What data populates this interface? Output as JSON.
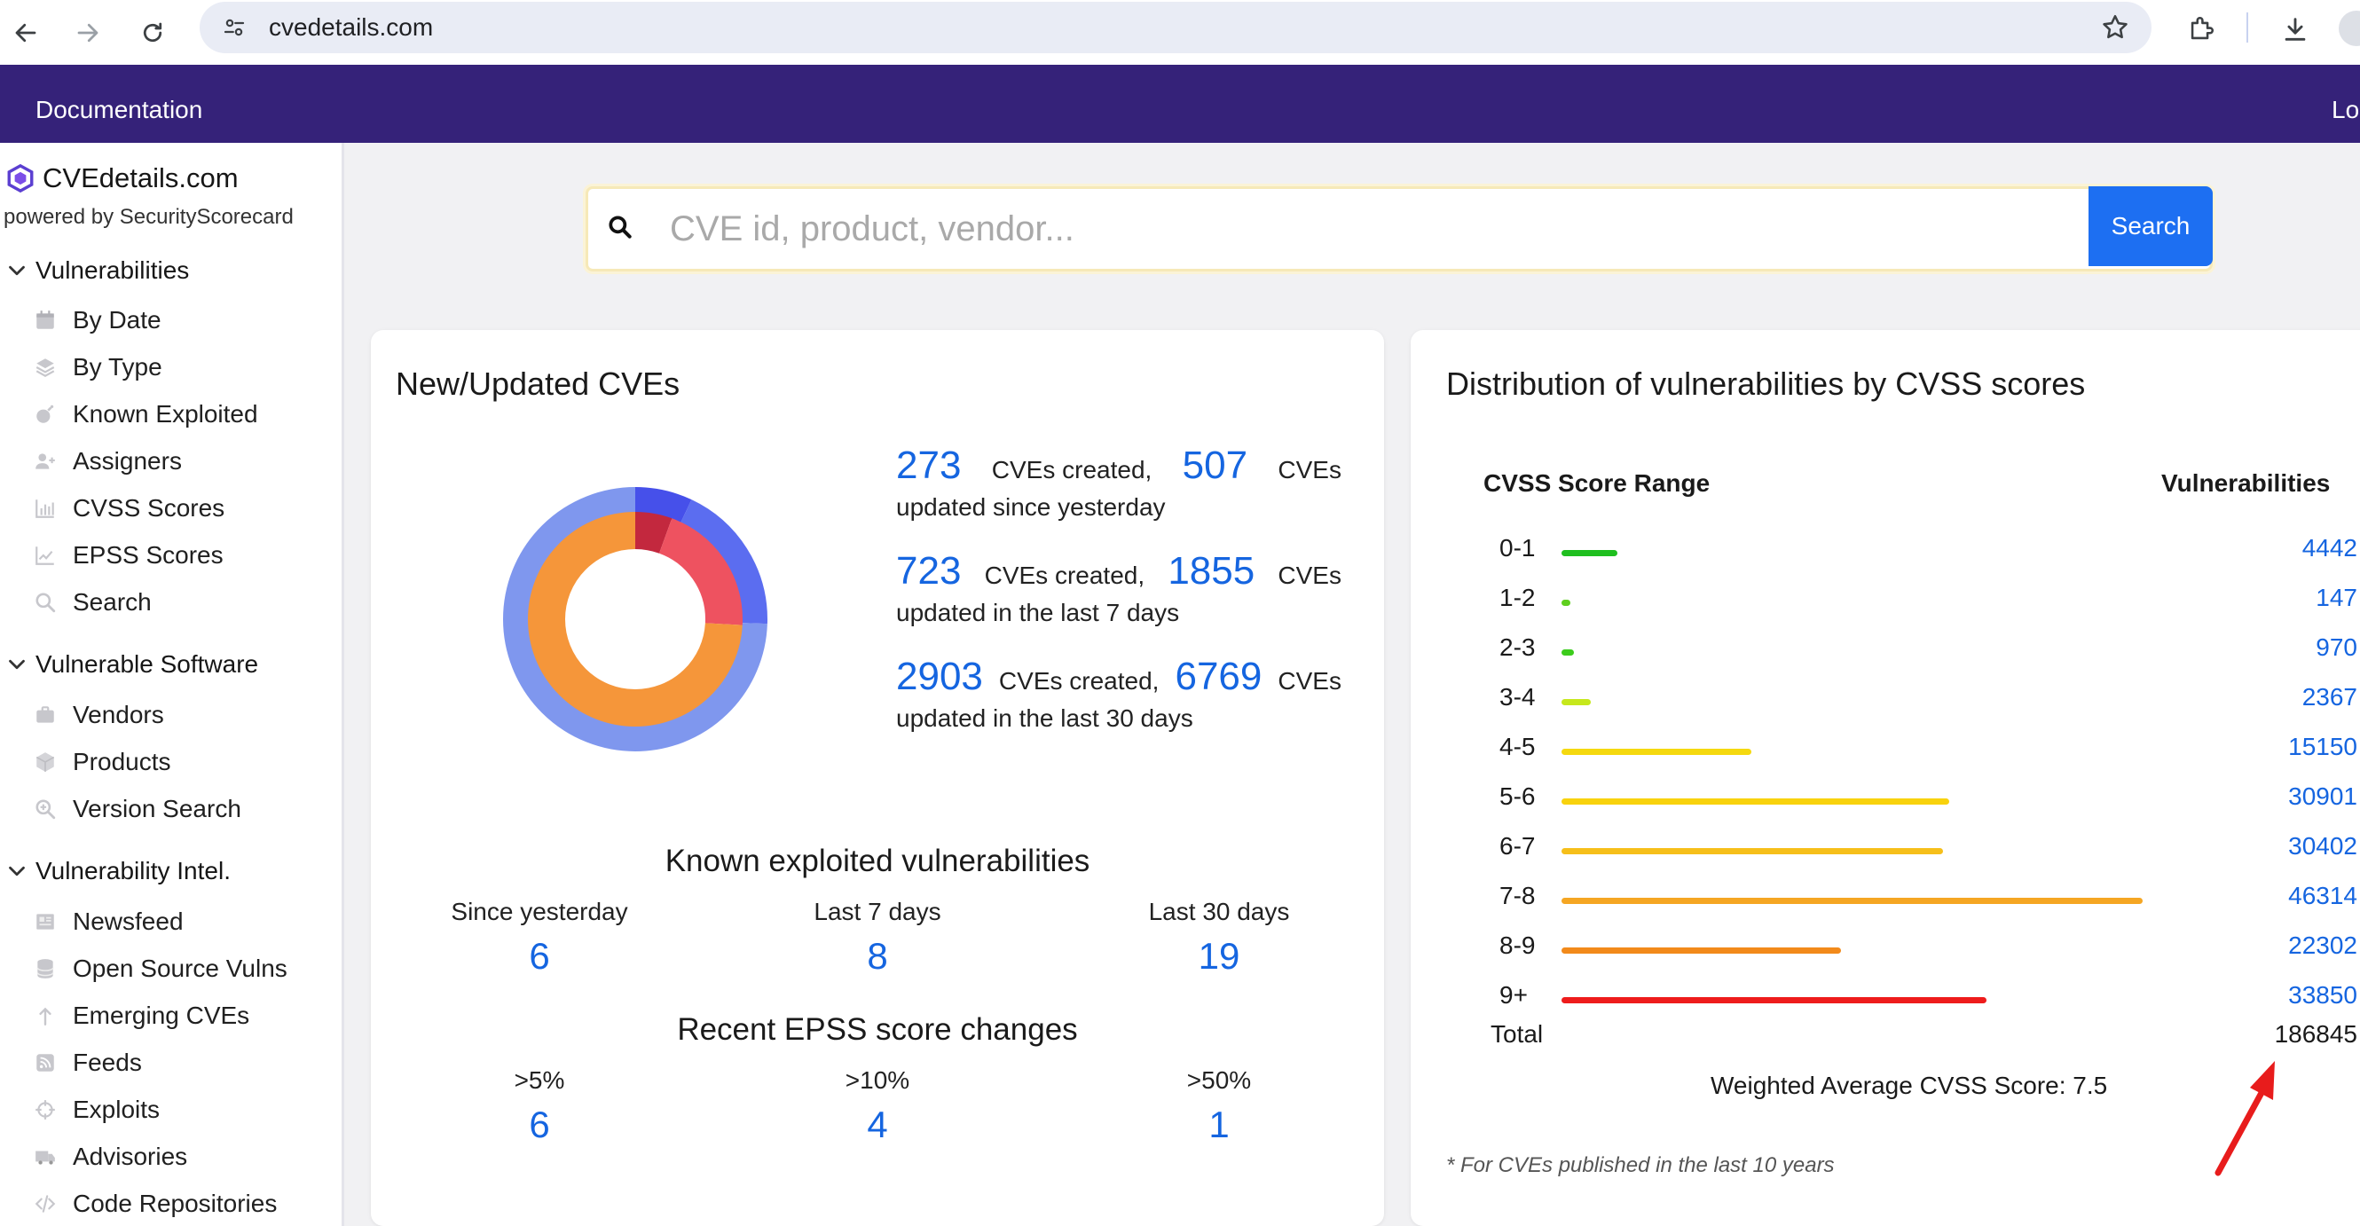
{
  "browser": {
    "url": "cvedetails.com"
  },
  "topnav": {
    "documentation": "Documentation",
    "login": "Lo"
  },
  "sidebar": {
    "brand": "CVEdetails.com",
    "powered": "powered by SecurityScorecard",
    "sections": [
      {
        "label": "Vulnerabilities",
        "items": [
          "By Date",
          "By Type",
          "Known Exploited",
          "Assigners",
          "CVSS Scores",
          "EPSS Scores",
          "Search"
        ]
      },
      {
        "label": "Vulnerable Software",
        "items": [
          "Vendors",
          "Products",
          "Version Search"
        ]
      },
      {
        "label": "Vulnerability Intel.",
        "items": [
          "Newsfeed",
          "Open Source Vulns",
          "Emerging CVEs",
          "Feeds",
          "Exploits",
          "Advisories",
          "Code Repositories"
        ]
      }
    ]
  },
  "search": {
    "placeholder": "CVE id, product, vendor...",
    "button": "Search"
  },
  "new_cves": {
    "title": "New/Updated CVEs",
    "stats": [
      {
        "created": "273",
        "updated": "507",
        "period": "updated since yesterday"
      },
      {
        "created": "723",
        "updated": "1855",
        "period": "updated in the last 7 days"
      },
      {
        "created": "2903",
        "updated": "6769",
        "period": "updated in the last 30 days"
      }
    ],
    "created_label": "CVEs created,",
    "cves_label": "CVEs",
    "donut": {
      "outer": [
        {
          "value": 273,
          "color": "#4650ea"
        },
        {
          "value": 723,
          "color": "#5b6df0"
        },
        {
          "value": 2903,
          "color": "#7f97ee"
        }
      ],
      "inner": [
        {
          "value": 507,
          "color": "#c3283e"
        },
        {
          "value": 1855,
          "color": "#ee5260"
        },
        {
          "value": 6769,
          "color": "#f5963a"
        }
      ]
    }
  },
  "known_exploited": {
    "title": "Known exploited vulnerabilities",
    "cols": [
      {
        "label": "Since yesterday",
        "value": "6"
      },
      {
        "label": "Last 7 days",
        "value": "8"
      },
      {
        "label": "Last 30 days",
        "value": "19"
      }
    ]
  },
  "epss": {
    "title": "Recent EPSS score changes",
    "cols": [
      {
        "label": ">5%",
        "value": "6"
      },
      {
        "label": ">10%",
        "value": "4"
      },
      {
        "label": ">50%",
        "value": "1"
      }
    ]
  },
  "distribution": {
    "title": "Distribution of vulnerabilities by CVSS scores",
    "col_range": "CVSS Score Range",
    "col_vulns": "Vulnerabilities",
    "rows": [
      {
        "range": "0-1",
        "count": 4442,
        "color": "#1fbf1f"
      },
      {
        "range": "1-2",
        "count": 147,
        "color": "#5fcf1f"
      },
      {
        "range": "2-3",
        "count": 970,
        "color": "#3ccc1c"
      },
      {
        "range": "3-4",
        "count": 2367,
        "color": "#c6e81c"
      },
      {
        "range": "4-5",
        "count": 15150,
        "color": "#f5d90f"
      },
      {
        "range": "5-6",
        "count": 30901,
        "color": "#f8d20d"
      },
      {
        "range": "6-7",
        "count": 30402,
        "color": "#f6bf1a"
      },
      {
        "range": "7-8",
        "count": 46314,
        "color": "#f5a623"
      },
      {
        "range": "8-9",
        "count": 22302,
        "color": "#f28a1b"
      },
      {
        "range": "9+",
        "count": 33850,
        "color": "#ee1c1c"
      }
    ],
    "total_label": "Total",
    "total": "186845",
    "weighted": "Weighted Average CVSS Score: 7.5",
    "note": "* For CVEs published in the last 10 years"
  }
}
